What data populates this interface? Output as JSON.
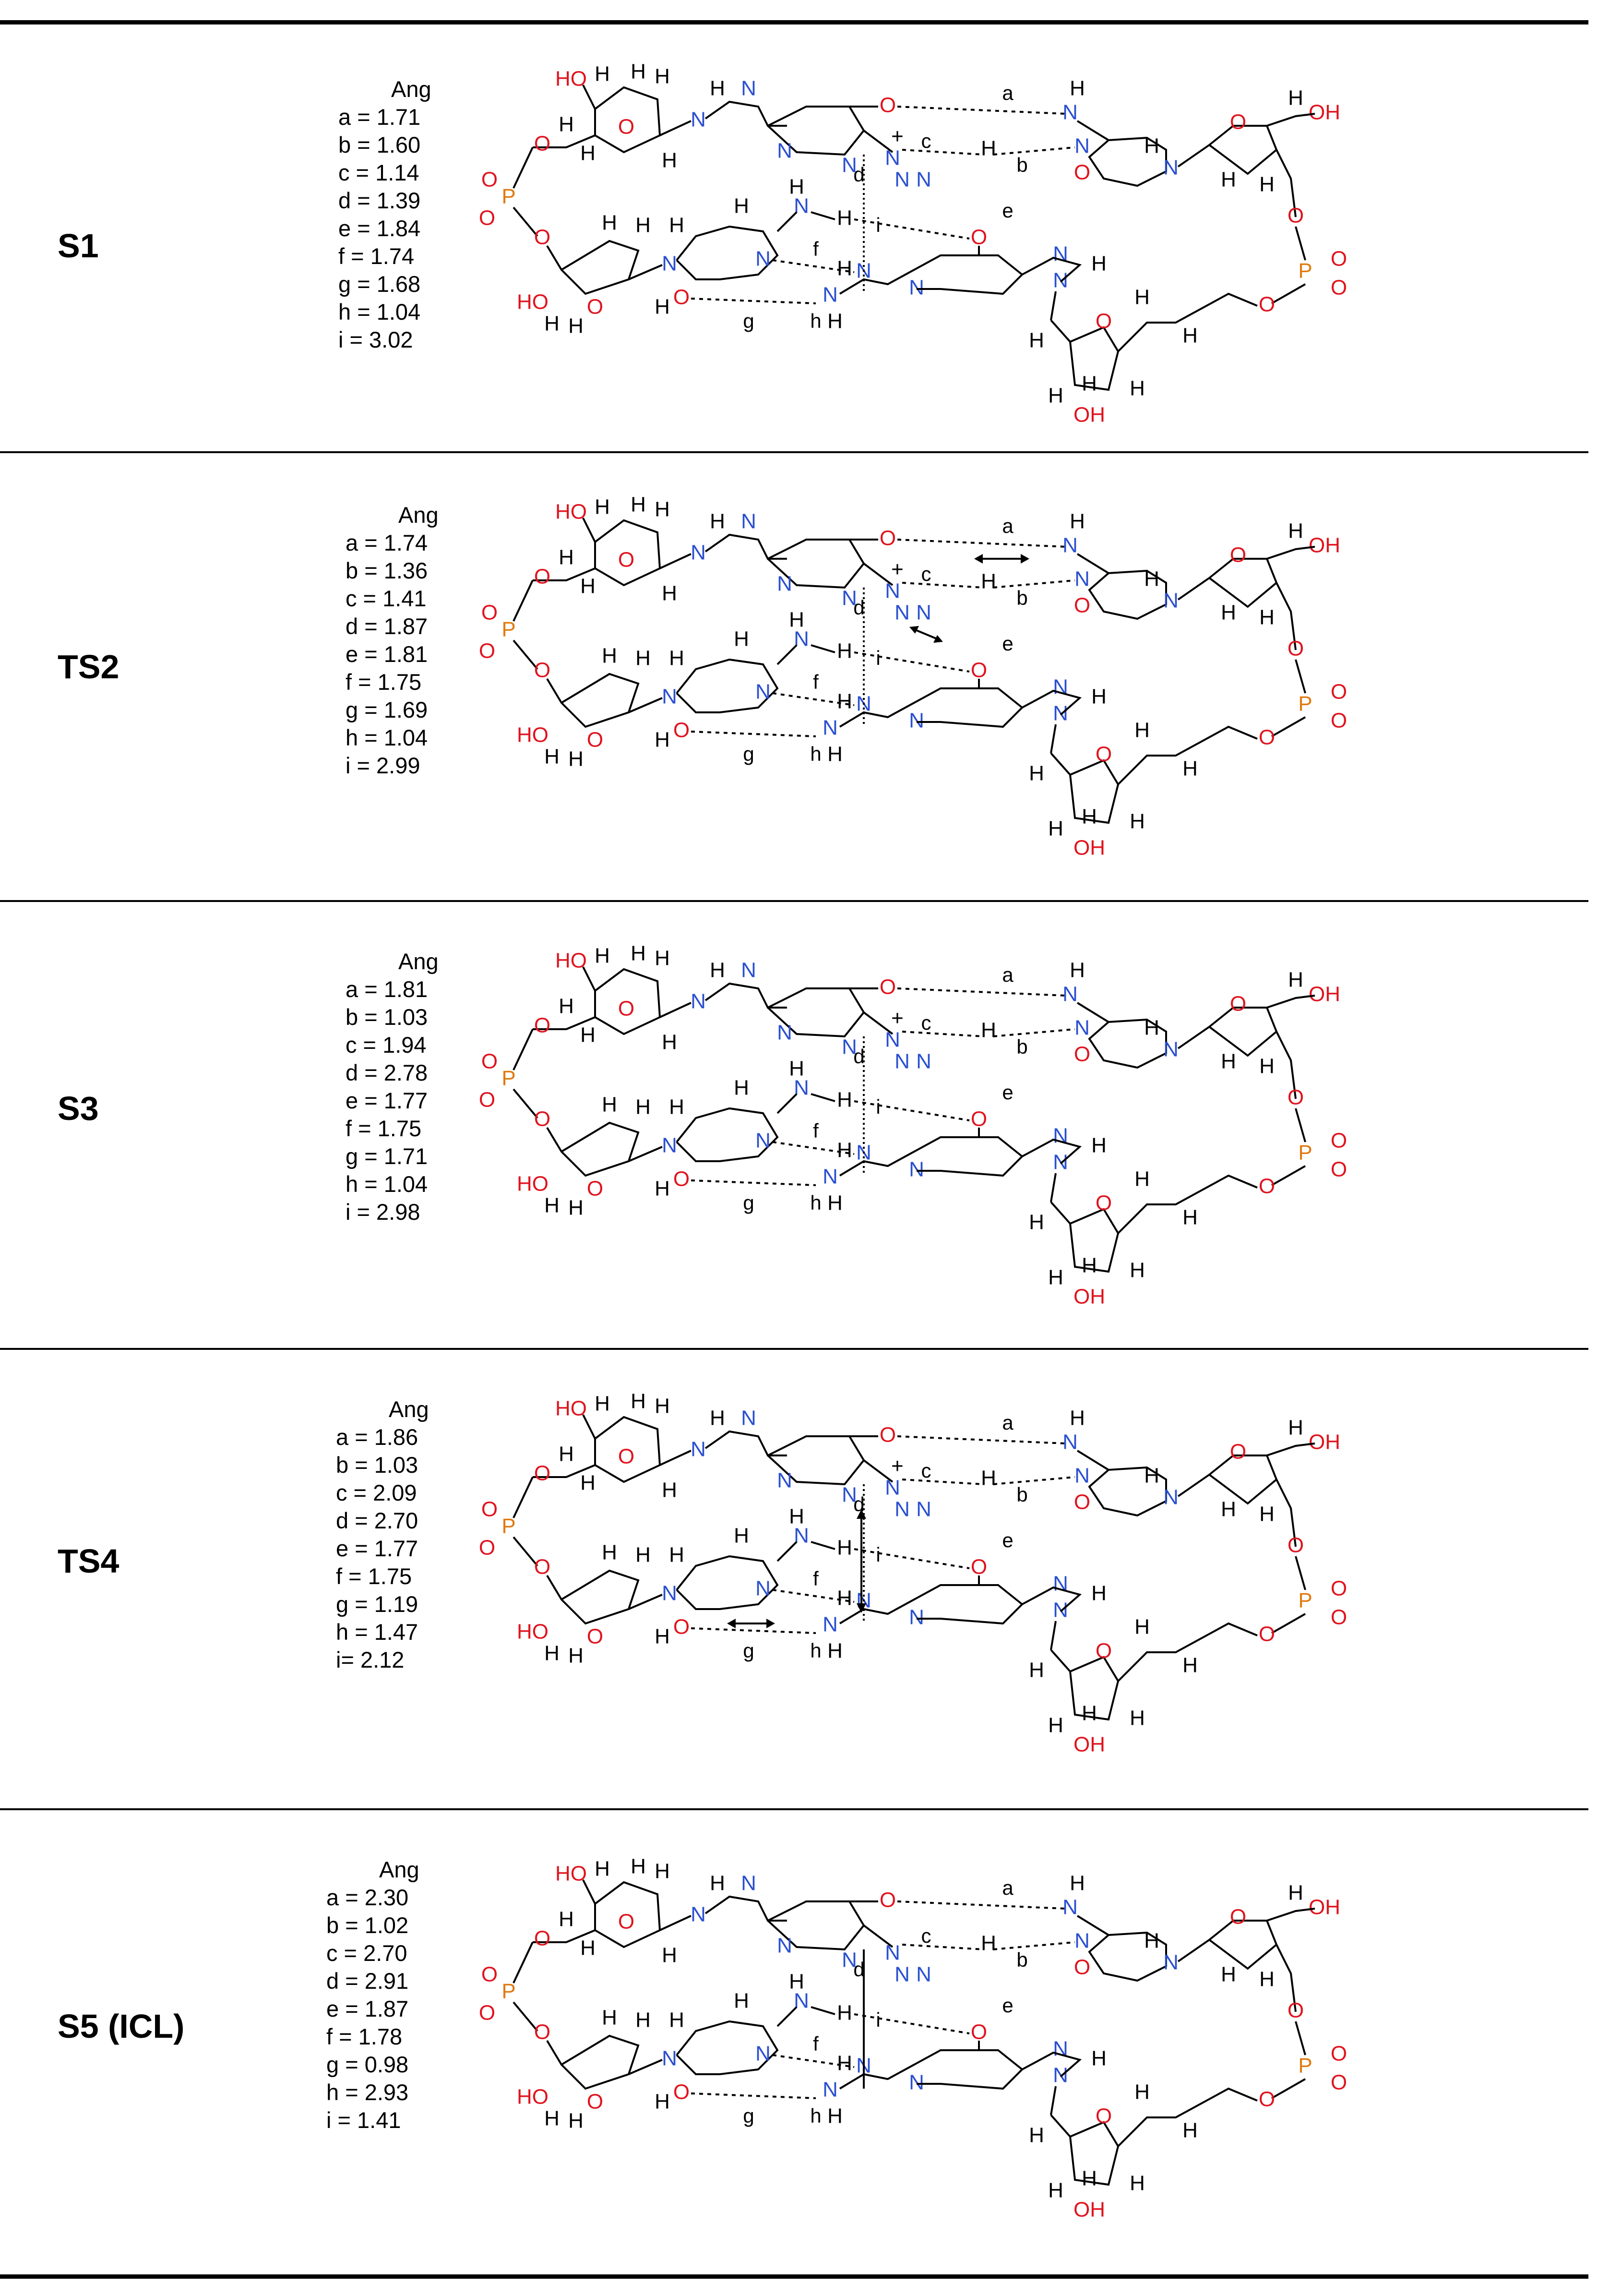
{
  "table": {
    "rows": [
      {
        "label": "S1",
        "unit": "Ang",
        "params": [
          "a = 1.71",
          "b = 1.60",
          "c = 1.14",
          "d = 1.39",
          "e = 1.84",
          "f = 1.74",
          "g = 1.68",
          "h = 1.04",
          "i  = 3.02"
        ],
        "charge": "+"
      },
      {
        "label": "TS2",
        "unit": "Ang",
        "params": [
          "a = 1.74",
          "b = 1.36",
          "c = 1.41",
          "d = 1.87",
          "e = 1.81",
          "f  = 1.75",
          "g = 1.69",
          "h = 1.04",
          "i  = 2.99"
        ],
        "charge": "+"
      },
      {
        "label": "S3",
        "unit": "Ang",
        "params": [
          "a = 1.81",
          "b = 1.03",
          "c = 1.94",
          "d = 2.78",
          "e = 1.77",
          "f  = 1.75",
          "g = 1.71",
          "h = 1.04",
          "i  = 2.98"
        ],
        "charge": "+"
      },
      {
        "label": "TS4",
        "unit": "Ang",
        "params": [
          "a = 1.86",
          "b = 1.03",
          "c = 2.09",
          "d = 2.70",
          "e = 1.77",
          "f  = 1.75",
          "g = 1.19",
          "h = 1.47",
          "i=  2.12"
        ],
        "charge": "+"
      },
      {
        "label": "S5 (ICL)",
        "unit": "Ang",
        "params": [
          "a = 2.30",
          "b = 1.02",
          "c = 2.70",
          "d = 2.91",
          "e = 1.87",
          "f = 1.78",
          "g = 0.98",
          "h = 2.93",
          "i =  1.41"
        ],
        "charge": ""
      }
    ],
    "atoms": {
      "N": "N",
      "O": "O",
      "H": "H",
      "P": "P",
      "HO": "HO",
      "OH": "OH",
      "N2": "N",
      "NH": "N"
    },
    "bond_letters": [
      "a",
      "b",
      "c",
      "d",
      "e",
      "f",
      "g",
      "h",
      "i"
    ]
  },
  "colors": {
    "nitrogen": "#2a4fd0",
    "oxygen": "#e0141e",
    "phosphorus": "#e07a10",
    "rule": "#000000"
  }
}
